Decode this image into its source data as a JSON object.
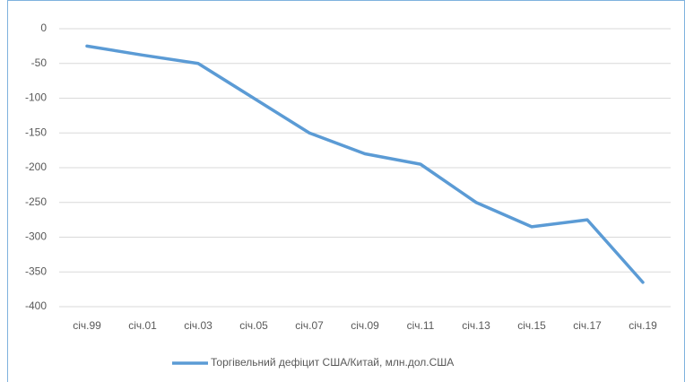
{
  "chart_data": {
    "type": "line",
    "categories": [
      "січ.99",
      "січ.01",
      "січ.03",
      "січ.05",
      "січ.07",
      "січ.09",
      "січ.11",
      "січ.13",
      "січ.15",
      "січ.17",
      "січ.19"
    ],
    "series": [
      {
        "name": "Торгівельний дефіцит США/Китай, млн.дол.США",
        "color": "#5b9bd5",
        "values": [
          -25,
          -38,
          -50,
          -100,
          -150,
          -180,
          -195,
          -250,
          -285,
          -275,
          -365
        ]
      }
    ],
    "ylim": [
      -400,
      0
    ],
    "yticks": [
      0,
      -50,
      -100,
      -150,
      -200,
      -250,
      -300,
      -350,
      -400
    ],
    "grid": true,
    "legend": "bottom"
  }
}
